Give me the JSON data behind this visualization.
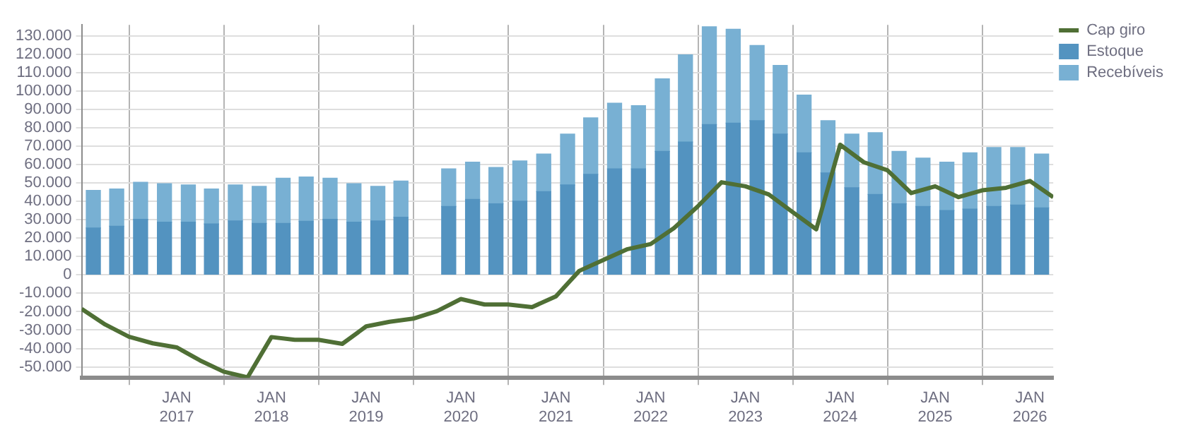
{
  "chart_data": {
    "type": "bar",
    "stacked": true,
    "legend": "top right",
    "grid": true,
    "xlim": [
      "2016-01",
      "2026-04"
    ],
    "xticks": [
      {
        "value": "2017-01",
        "label": "JAN\n2017"
      },
      {
        "value": "2018-01",
        "label": "JAN\n2018"
      },
      {
        "value": "2019-01",
        "label": "JAN\n2019"
      },
      {
        "value": "2020-01",
        "label": "JAN\n2020"
      },
      {
        "value": "2021-01",
        "label": "JAN\n2021"
      },
      {
        "value": "2022-01",
        "label": "JAN\n2022"
      },
      {
        "value": "2023-01",
        "label": "JAN\n2023"
      },
      {
        "value": "2024-01",
        "label": "JAN\n2024"
      },
      {
        "value": "2025-01",
        "label": "JAN\n2025"
      },
      {
        "value": "2026-01",
        "label": "JAN\n2026"
      }
    ],
    "ylim": [
      -56000,
      136000
    ],
    "yticks": [
      {
        "value": -50000,
        "label": "-50.000"
      },
      {
        "value": -40000,
        "label": "-40.000"
      },
      {
        "value": -30000,
        "label": "-30.000"
      },
      {
        "value": -20000,
        "label": "-20.000"
      },
      {
        "value": -10000,
        "label": "-10.000"
      },
      {
        "value": 0,
        "label": "0"
      },
      {
        "value": 10000,
        "label": "10.000"
      },
      {
        "value": 20000,
        "label": "20.000"
      },
      {
        "value": 30000,
        "label": "30.000"
      },
      {
        "value": 40000,
        "label": "40.000"
      },
      {
        "value": 50000,
        "label": "50.000"
      },
      {
        "value": 60000,
        "label": "60.000"
      },
      {
        "value": 70000,
        "label": "70.000"
      },
      {
        "value": 80000,
        "label": "80.000"
      },
      {
        "value": 90000,
        "label": "90.000"
      },
      {
        "value": 100000,
        "label": "100.000"
      },
      {
        "value": 110000,
        "label": "110.000"
      },
      {
        "value": 120000,
        "label": "120.000"
      },
      {
        "value": 130000,
        "label": "130.000"
      }
    ],
    "x": [
      "2016-02-15",
      "2016-05-15",
      "2016-08-15",
      "2016-11-15",
      "2017-02-15",
      "2017-05-15",
      "2017-08-15",
      "2017-11-15",
      "2018-02-15",
      "2018-05-15",
      "2018-08-15",
      "2018-11-15",
      "2019-02-15",
      "2019-05-15",
      "2019-08-15",
      "2019-11-15",
      "2020-02-15",
      "2020-05-15",
      "2020-08-15",
      "2020-11-15",
      "2021-02-15",
      "2021-05-15",
      "2021-08-15",
      "2021-11-15",
      "2022-02-15",
      "2022-05-15",
      "2022-08-15",
      "2022-11-15",
      "2023-02-15",
      "2023-05-15",
      "2023-08-15",
      "2023-11-15",
      "2024-02-15",
      "2024-05-15",
      "2024-08-15",
      "2024-11-15",
      "2025-02-15",
      "2025-05-15",
      "2025-08-15",
      "2025-11-15",
      "2026-02-15"
    ],
    "series": [
      {
        "name": "Estoque",
        "color": "#5393c0",
        "values": [
          25500,
          26500,
          30200,
          28700,
          28700,
          27700,
          29400,
          28000,
          28000,
          29200,
          30200,
          28700,
          29400,
          31400,
          null,
          37200,
          41100,
          38700,
          40100,
          45300,
          48900,
          54700,
          57700,
          57700,
          67200,
          72300,
          81800,
          82500,
          83900,
          76600,
          66400,
          55500,
          47400,
          43800,
          38700,
          37200,
          35000,
          35800,
          37200,
          38000,
          36500
        ]
      },
      {
        "name": "Recebíveis",
        "color": "#78b0d3",
        "values": [
          20500,
          20200,
          20200,
          20900,
          20200,
          19000,
          19500,
          20200,
          24600,
          24100,
          22400,
          20900,
          18800,
          19700,
          null,
          20500,
          20200,
          19700,
          21900,
          20400,
          27700,
          30700,
          35700,
          34300,
          39400,
          47400,
          53200,
          51100,
          40900,
          37300,
          31400,
          28400,
          29200,
          33600,
          28500,
          26300,
          26300,
          30600,
          32100,
          31300,
          29200
        ]
      },
      {
        "name": "Cap giro",
        "type": "line",
        "color": "#4f6f35",
        "x": [
          "2016-01",
          "2016-04",
          "2016-07",
          "2016-10",
          "2017-01",
          "2017-04",
          "2017-07",
          "2017-10",
          "2018-01",
          "2018-04",
          "2018-07",
          "2018-10",
          "2019-01",
          "2019-04",
          "2019-07",
          "2019-10",
          "2020-01",
          "2020-04",
          "2020-07",
          "2020-10",
          "2021-01",
          "2021-04",
          "2021-07",
          "2021-10",
          "2022-01",
          "2022-04",
          "2022-07",
          "2022-10",
          "2023-01",
          "2023-04",
          "2023-07",
          "2023-10",
          "2024-01",
          "2024-04",
          "2024-07",
          "2024-10",
          "2025-01",
          "2025-04",
          "2025-07",
          "2025-10",
          "2026-01",
          "2026-04"
        ],
        "values": [
          -18500,
          -27000,
          -33600,
          -37200,
          -39400,
          -46500,
          -52600,
          -55700,
          -33800,
          -35300,
          -35300,
          -37500,
          -28000,
          -25500,
          -23800,
          -19700,
          -13100,
          -16100,
          -16100,
          -17500,
          -11700,
          2200,
          8000,
          13900,
          16800,
          25500,
          37200,
          50400,
          48200,
          43800,
          34300,
          24800,
          70800,
          61300,
          56900,
          44500,
          48200,
          42300,
          46000,
          47400,
          51100,
          42300
        ]
      }
    ]
  }
}
